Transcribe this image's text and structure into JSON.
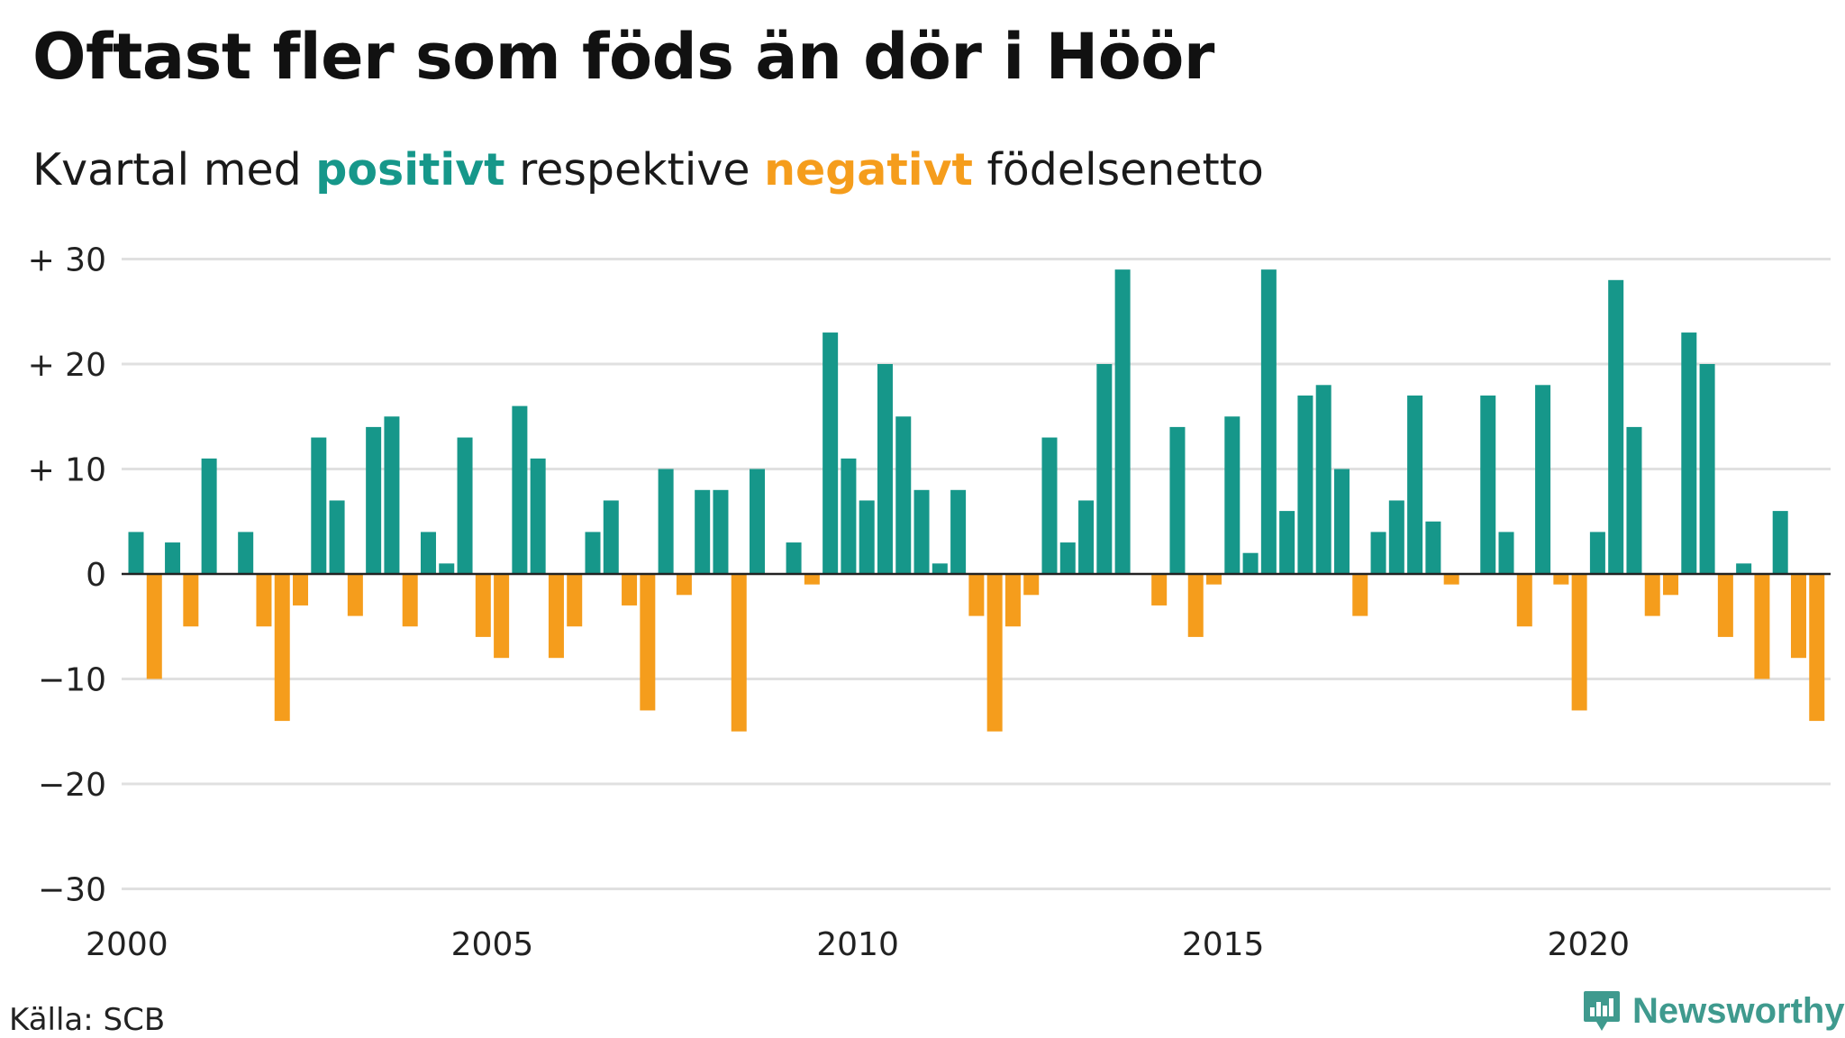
{
  "title": "Oftast fler som föds än dör i Höör",
  "subtitle": {
    "prefix": "Kvartal med",
    "positive_word": "positivt",
    "middle": "respektive",
    "negative_word": "negativt",
    "suffix": "födelsenetto"
  },
  "source": "Källa: SCB",
  "brand": "Newsworthy",
  "colors": {
    "positive": "#16978a",
    "negative": "#f59d1c",
    "grid": "#e0e0e0",
    "baseline": "#222222"
  },
  "chart_data": {
    "type": "bar",
    "title": "Oftast fler som föds än dör i Höör",
    "subtitle": "Kvartal med positivt respektive negativt födelsenetto",
    "xlabel": "",
    "ylabel": "",
    "ylim": [
      -30,
      30
    ],
    "yticks": [
      30,
      20,
      10,
      0,
      -10,
      -20,
      -30
    ],
    "ytick_labels": [
      "+ 30",
      "+ 20",
      "+ 10",
      "0",
      "−10",
      "−20",
      "−30"
    ],
    "xtick_labels": [
      "2000",
      "2005",
      "2010",
      "2015",
      "2020"
    ],
    "grid": true,
    "start": "2000 Q1",
    "frequency": "quarter",
    "values": [
      4,
      -10,
      3,
      -5,
      11,
      0,
      4,
      -5,
      -14,
      -3,
      13,
      7,
      -4,
      14,
      15,
      -5,
      4,
      1,
      13,
      -6,
      -8,
      16,
      11,
      -8,
      -5,
      4,
      7,
      -3,
      -13,
      10,
      -2,
      8,
      8,
      -15,
      10,
      0,
      3,
      -1,
      23,
      11,
      7,
      20,
      15,
      8,
      1,
      8,
      -4,
      -15,
      -5,
      -2,
      13,
      3,
      7,
      20,
      29,
      0,
      -3,
      14,
      -6,
      -1,
      15,
      2,
      29,
      6,
      17,
      18,
      10,
      -4,
      4,
      7,
      17,
      5,
      -1,
      0,
      17,
      4,
      -5,
      18,
      -1,
      -13,
      4,
      28,
      14,
      -4,
      -2,
      23,
      20,
      -6,
      1,
      -10,
      6,
      -8,
      -14
    ]
  }
}
